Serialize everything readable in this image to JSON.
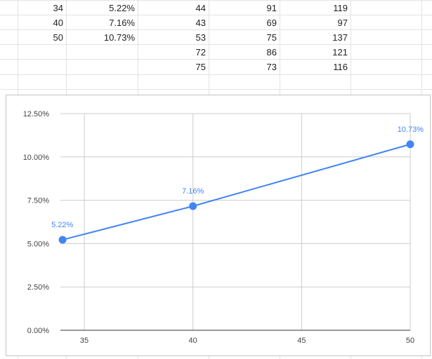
{
  "sheet": {
    "rows": [
      [
        "34",
        "5.22%",
        "44",
        "91",
        "119"
      ],
      [
        "40",
        "7.16%",
        "43",
        "69",
        "97"
      ],
      [
        "50",
        "10.73%",
        "53",
        "75",
        "137"
      ],
      [
        "",
        "",
        "72",
        "86",
        "121"
      ],
      [
        "",
        "",
        "75",
        "73",
        "116"
      ]
    ]
  },
  "chart_data": {
    "type": "line",
    "x": [
      34,
      40,
      50
    ],
    "series": [
      {
        "values": [
          5.22,
          7.16,
          10.73
        ],
        "labels": [
          "5.22%",
          "7.16%",
          "10.73%"
        ]
      }
    ],
    "title": "",
    "xlabel": "",
    "ylabel": "",
    "xlim": [
      33.9,
      50
    ],
    "ylim": [
      0,
      12.5
    ],
    "x_ticks": [
      "35",
      "40",
      "45",
      "50"
    ],
    "y_ticks": [
      "0.00%",
      "2.50%",
      "5.00%",
      "7.50%",
      "10.00%",
      "12.50%"
    ],
    "grid": true,
    "legend": "none",
    "colors": {
      "series": "#4285f4",
      "grid": "#cccccc",
      "axis": "#333333"
    }
  }
}
